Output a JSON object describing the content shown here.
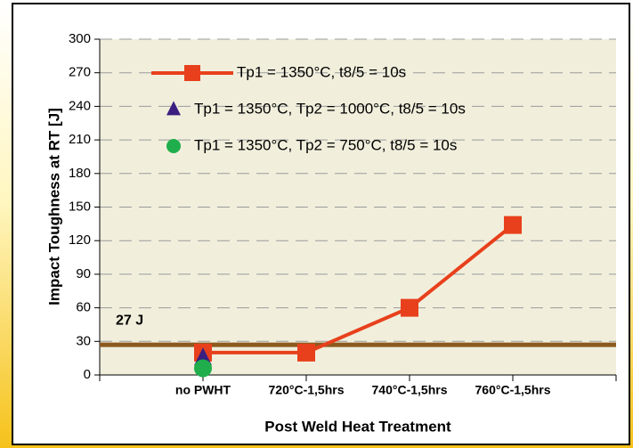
{
  "chart_data": {
    "type": "line",
    "xlabel": "Post Weld Heat Treatment",
    "ylabel": "Impact Toughness at RT [J]",
    "categories": [
      "no PWHT",
      "720°C-1,5hrs",
      "740°C-1,5hrs",
      "760°C-1,5hrs"
    ],
    "series": [
      {
        "name": "Tp1 = 1350°C, t8/5 = 10s",
        "color": "#e8401c",
        "marker": "square",
        "line": true,
        "values": [
          20,
          20,
          60,
          134
        ]
      },
      {
        "name": "Tp1 = 1350°C, Tp2 = 1000°C, t8/5 = 10s",
        "color": "#3b1f80",
        "marker": "triangle",
        "line": false,
        "values": [
          15,
          null,
          null,
          null
        ]
      },
      {
        "name": "Tp1 = 1350°C, Tp2 = 750°C, t8/5 = 10s",
        "color": "#1fae4b",
        "marker": "circle",
        "line": false,
        "values": [
          6,
          null,
          null,
          null
        ]
      }
    ],
    "reference_line": {
      "value": 27,
      "label": "27 J",
      "color": "#8b5a1e"
    },
    "ylim": [
      0,
      300
    ],
    "yticks": [
      0,
      30,
      60,
      90,
      120,
      150,
      180,
      210,
      240,
      270,
      300
    ],
    "grid": true,
    "legend": "upper left"
  }
}
